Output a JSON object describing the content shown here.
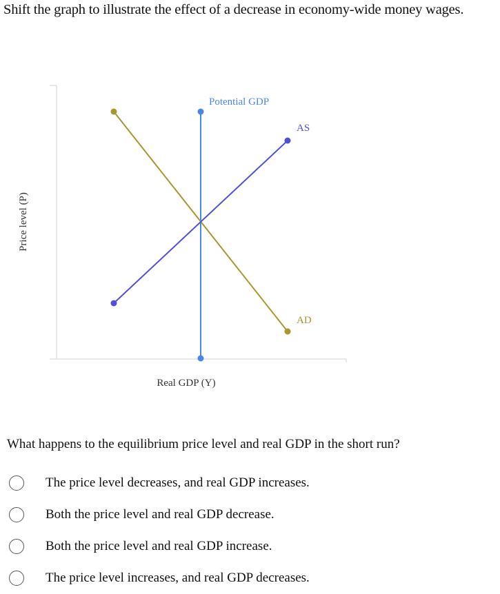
{
  "instruction": "Shift the graph to illustrate the effect of a decrease in economy-wide money wages.",
  "graph": {
    "xlabel": "Real GDP (Y)",
    "ylabel": "Price level (P)",
    "curves": [
      {
        "name": "Potential GDP",
        "color": "#4a86e8",
        "type": "vertical"
      },
      {
        "name": "AS",
        "color": "#5050d8",
        "type": "upward"
      },
      {
        "name": "AD",
        "color": "#a8962e",
        "type": "downward"
      }
    ]
  },
  "question": "What happens to the equilibrium price level and real GDP in the short run?",
  "options": [
    {
      "label": "The price level decreases, and real GDP increases."
    },
    {
      "label": "Both the price level and real GDP decrease."
    },
    {
      "label": "Both the price level and real GDP increase."
    },
    {
      "label": "The price level increases, and real GDP decreases."
    }
  ]
}
